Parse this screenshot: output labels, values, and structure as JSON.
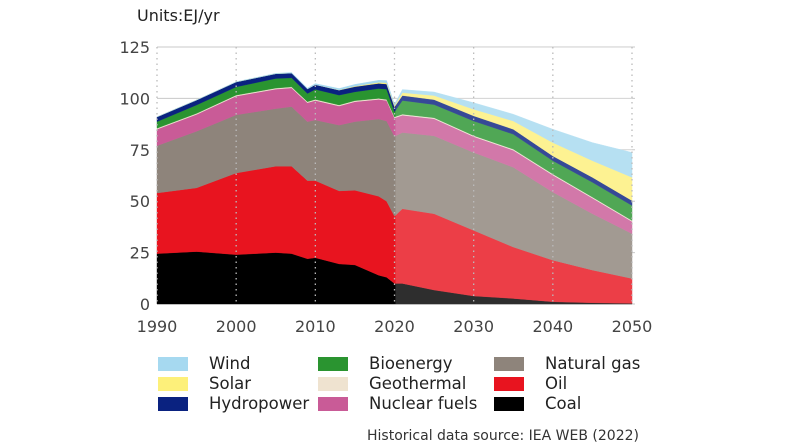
{
  "units_label": "Units:EJ/yr",
  "source_note": "Historical data source: IEA WEB (2022)",
  "chart_data": {
    "type": "area",
    "stacked": true,
    "title": "",
    "xlabel": "",
    "ylabel": "Units:EJ/yr",
    "xlim": [
      1990,
      2050
    ],
    "ylim": [
      0,
      125
    ],
    "x_ticks": [
      1990,
      2000,
      2010,
      2020,
      2030,
      2040,
      2050
    ],
    "y_ticks": [
      0,
      25,
      50,
      75,
      100,
      125
    ],
    "grid": {
      "horizontal": "solid",
      "vertical": "dotted"
    },
    "projection_start": 2020,
    "legend_placement": "bottom",
    "x": [
      1990,
      1995,
      2000,
      2005,
      2007,
      2009,
      2010,
      2013,
      2015,
      2018,
      2019,
      2020,
      2021,
      2025,
      2030,
      2035,
      2040,
      2045,
      2050
    ],
    "series": [
      {
        "name": "Coal",
        "color": "#000000",
        "values": [
          24.5,
          25.5,
          24,
          25,
          24.5,
          22,
          22.5,
          19.5,
          19,
          14,
          13,
          10,
          10,
          6.8,
          3.9,
          2.7,
          1.1,
          0.6,
          0.3
        ]
      },
      {
        "name": "Oil",
        "color": "#e8141f",
        "values": [
          29.5,
          31,
          39.7,
          42,
          42.5,
          38,
          37.5,
          35.5,
          36.3,
          38.4,
          37,
          32.7,
          36.3,
          37.1,
          31.9,
          25,
          20.2,
          15.9,
          12.1
        ]
      },
      {
        "name": "Natural gas",
        "color": "#8e847b",
        "values": [
          23,
          27.5,
          28.3,
          28,
          29,
          28.7,
          29.5,
          32,
          33.4,
          37.6,
          39,
          38.8,
          37.1,
          37.9,
          37.9,
          38.8,
          33.1,
          27.4,
          21.8
        ]
      },
      {
        "name": "Nuclear fuels",
        "color": "#c95b97",
        "values": [
          8,
          8.2,
          9.1,
          9.5,
          9.1,
          9.2,
          9.5,
          9.3,
          9.7,
          9.5,
          10,
          9,
          8.4,
          8.3,
          7.7,
          8.3,
          8.3,
          7.6,
          5.9
        ]
      },
      {
        "name": "Geothermal",
        "color": "#efe3d0",
        "values": [
          0.5,
          0.5,
          0.5,
          0.5,
          0.5,
          0.5,
          0.5,
          0.5,
          0.5,
          0.5,
          0.5,
          0.5,
          0.5,
          0.5,
          0.5,
          0.5,
          0.5,
          0.5,
          0.5
        ]
      },
      {
        "name": "Bioenergy",
        "color": "#2a9430",
        "values": [
          3.2,
          4.1,
          4.0,
          4.7,
          4.4,
          4.0,
          4.9,
          4.8,
          4.3,
          4.8,
          5,
          2.5,
          6.7,
          6.4,
          7.1,
          7.3,
          6.5,
          7.2,
          7.3
        ]
      },
      {
        "name": "Hydropower",
        "color": "#0a2280",
        "values": [
          2.3,
          2.4,
          2.4,
          2.3,
          2.3,
          2.2,
          2.3,
          2.4,
          2.5,
          2.5,
          2.5,
          2.4,
          2.4,
          2.4,
          2.5,
          2.4,
          2.3,
          2.4,
          2.4
        ]
      },
      {
        "name": "Solar",
        "color": "#fdf07a",
        "values": [
          0,
          0,
          0,
          0,
          0,
          0,
          0,
          0.1,
          0.3,
          0.5,
          0.6,
          0.5,
          1.4,
          2,
          3.2,
          4,
          6.5,
          8.1,
          11.3
        ]
      },
      {
        "name": "Wind",
        "color": "#a6d9f0",
        "values": [
          0,
          0,
          0.1,
          0.2,
          0.3,
          0.4,
          0.5,
          0.7,
          0.8,
          1,
          1.1,
          0.8,
          1.5,
          1.7,
          3.2,
          3.3,
          6.5,
          8.8,
          12.1
        ]
      }
    ]
  },
  "legend": [
    {
      "label": "Wind",
      "color": "#a6d9f0"
    },
    {
      "label": "Solar",
      "color": "#fdf07a"
    },
    {
      "label": "Hydropower",
      "color": "#0a2280"
    },
    {
      "label": "Bioenergy",
      "color": "#2a9430"
    },
    {
      "label": "Geothermal",
      "color": "#efe3d0"
    },
    {
      "label": "Nuclear fuels",
      "color": "#c95b97"
    },
    {
      "label": "Natural gas",
      "color": "#8e847b"
    },
    {
      "label": "Oil",
      "color": "#e8141f"
    },
    {
      "label": "Coal",
      "color": "#000000"
    }
  ]
}
